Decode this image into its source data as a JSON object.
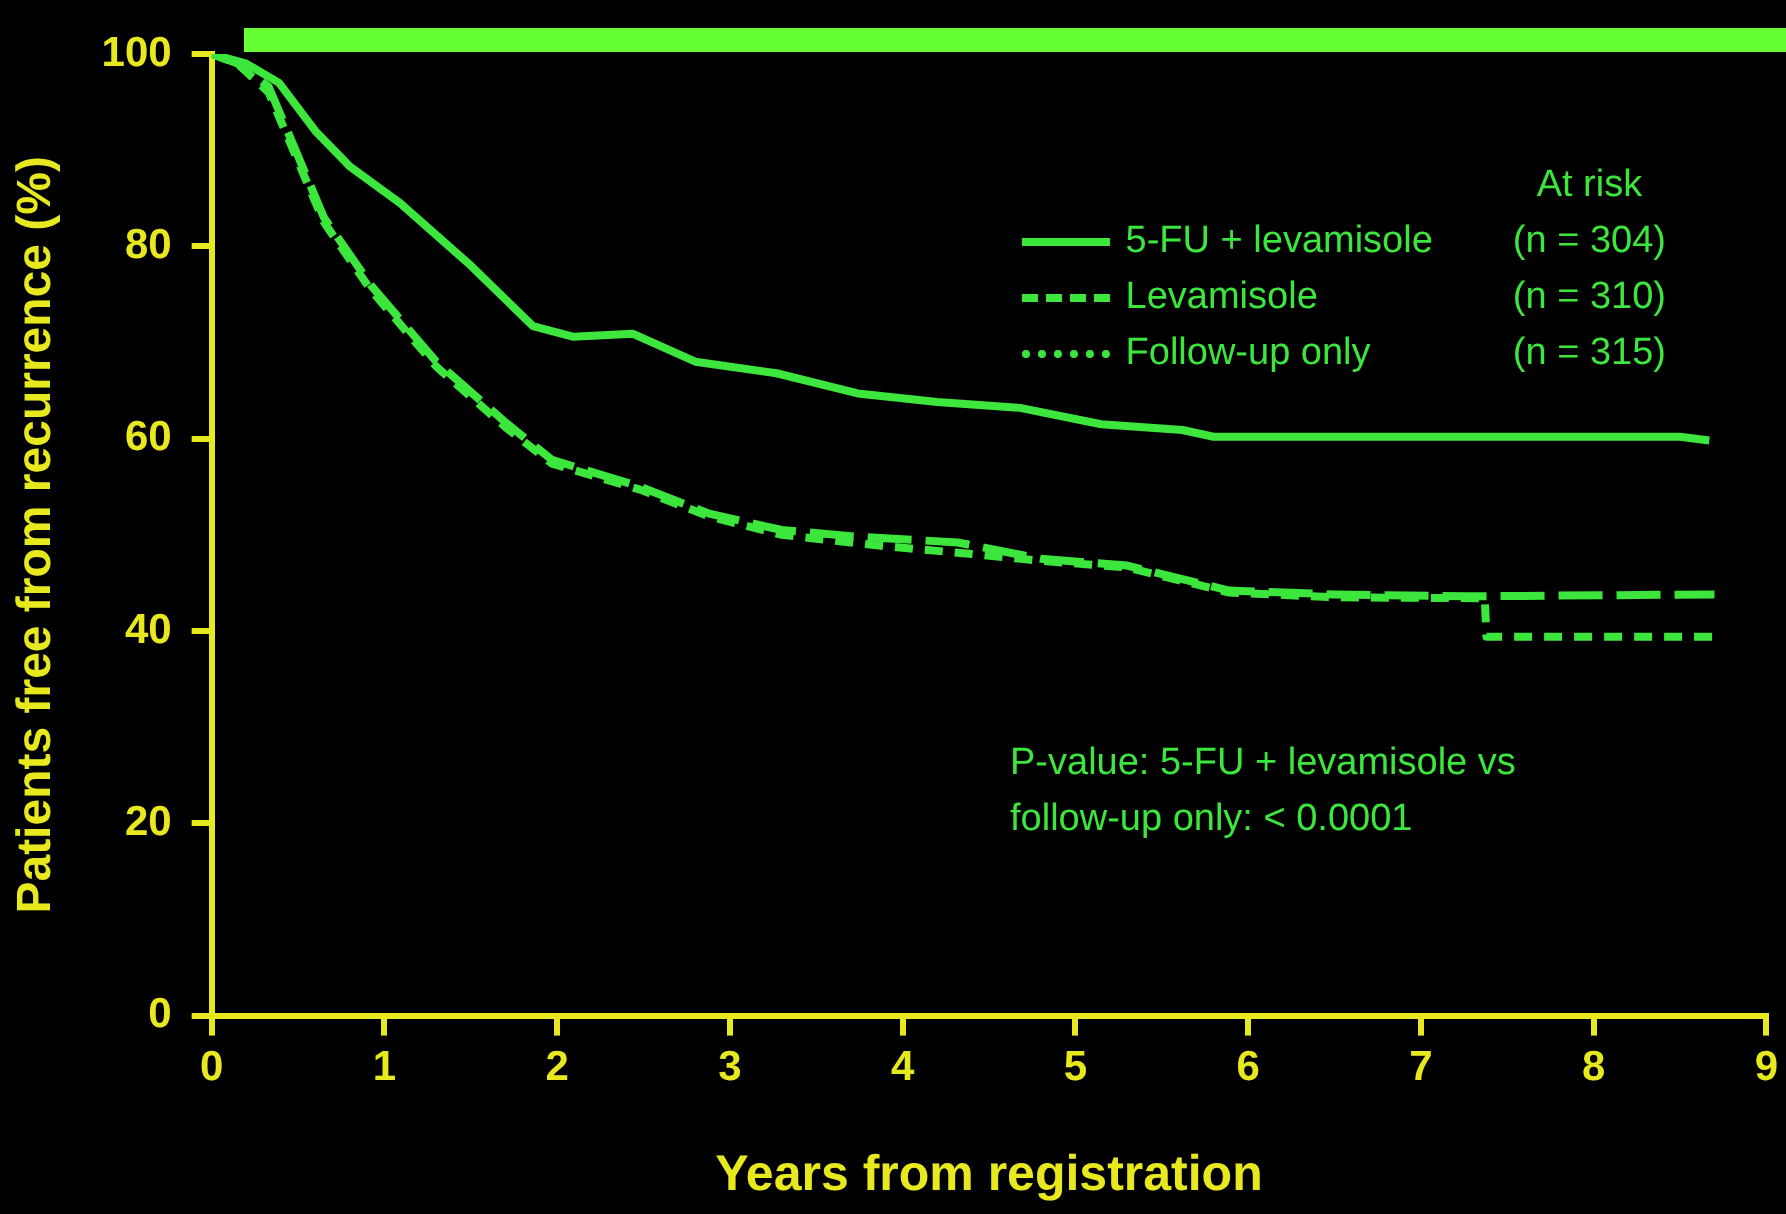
{
  "chart_data": {
    "type": "line",
    "xlabel": "Years from registration",
    "ylabel": "Patients free from recurrence (%)",
    "xlim": [
      0,
      9
    ],
    "xticks": [
      0,
      1,
      2,
      3,
      4,
      5,
      6,
      7,
      8,
      9
    ],
    "ylim": [
      0,
      100
    ],
    "yticks": [
      0,
      20,
      40,
      60,
      80,
      100
    ],
    "legend": "top right",
    "annotations": [
      "At risk",
      "(n = 304)",
      "(n = 310)",
      "(n = 315)",
      "P-value:  5-FU + levamisole vs follow-up only:  < 0.0001"
    ],
    "series": [
      {
        "name": "5-FU + levamisole",
        "color": "#3ce63c",
        "line_style": "solid",
        "x": [
          0,
          0.2,
          0.39,
          0.6,
          0.8,
          1.09,
          1.5,
          1.86,
          2.09,
          2.44,
          2.8,
          3.27,
          3.74,
          4.2,
          4.68,
          5.15,
          5.62,
          5.8,
          8.5,
          8.67
        ],
        "values": [
          100,
          99,
          97,
          92,
          88.3,
          84.5,
          78,
          71.7,
          70.6,
          70.9,
          68,
          66.8,
          64.7,
          63.8,
          63.2,
          61.5,
          60.9,
          60.2,
          60.2,
          59.8
        ]
      },
      {
        "name": "Levamisole",
        "color": "#3ce63c",
        "line_style": "dashed",
        "x": [
          0,
          0.15,
          0.33,
          0.65,
          0.92,
          1.3,
          1.7,
          1.97,
          2.48,
          2.88,
          3.3,
          3.74,
          4.32,
          4.8,
          5.3,
          5.89,
          6.5,
          7.26,
          8.7
        ],
        "values": [
          100,
          99,
          96.6,
          83,
          76,
          68,
          61.7,
          57.8,
          55,
          52.2,
          50.5,
          49.8,
          49.2,
          47.5,
          46.8,
          44.2,
          43.8,
          43.6,
          43.8
        ]
      },
      {
        "name": "Follow-up only",
        "color": "#3ce63c",
        "line_style": "dotted",
        "x": [
          0,
          0.15,
          0.33,
          0.65,
          0.92,
          1.3,
          1.7,
          1.97,
          2.48,
          2.88,
          3.3,
          3.85,
          4.4,
          4.8,
          5.3,
          5.89,
          6.5,
          7.37,
          7.38,
          8.7
        ],
        "values": [
          100,
          99,
          96,
          82.5,
          75.5,
          67.5,
          61.2,
          57.4,
          54.7,
          51.9,
          50,
          48.9,
          48,
          47.3,
          46.6,
          44,
          43.5,
          43.4,
          39.4,
          39.4
        ]
      }
    ]
  }
}
